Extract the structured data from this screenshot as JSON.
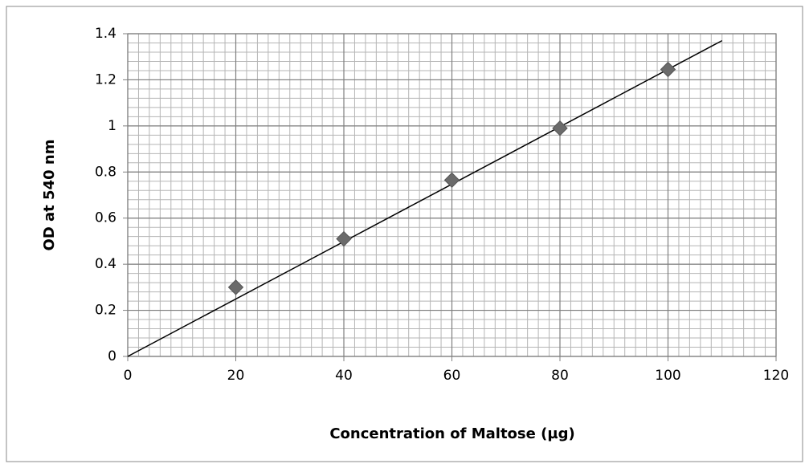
{
  "chart_data": {
    "type": "scatter",
    "x_label": "Concentration of Maltose (µg)",
    "y_label": "OD at 540 nm",
    "series": [
      {
        "name": "OD",
        "color": "#6b6b6b",
        "x": [
          20,
          40,
          60,
          80,
          100
        ],
        "values": [
          0.3,
          0.51,
          0.765,
          0.99,
          1.245
        ]
      }
    ],
    "trendline": {
      "color": "#000000",
      "x": [
        0,
        110
      ],
      "values": [
        0,
        1.37
      ]
    },
    "xlim": [
      0,
      120
    ],
    "xticks": [
      0,
      20,
      40,
      60,
      80,
      100,
      120
    ],
    "ylim": [
      0,
      1.4
    ],
    "yticks": [
      0,
      0.2,
      0.4,
      0.6,
      0.8,
      1,
      1.2,
      1.4
    ],
    "grid": true,
    "minor_grid": {
      "x": 2,
      "y": 0.04
    }
  }
}
